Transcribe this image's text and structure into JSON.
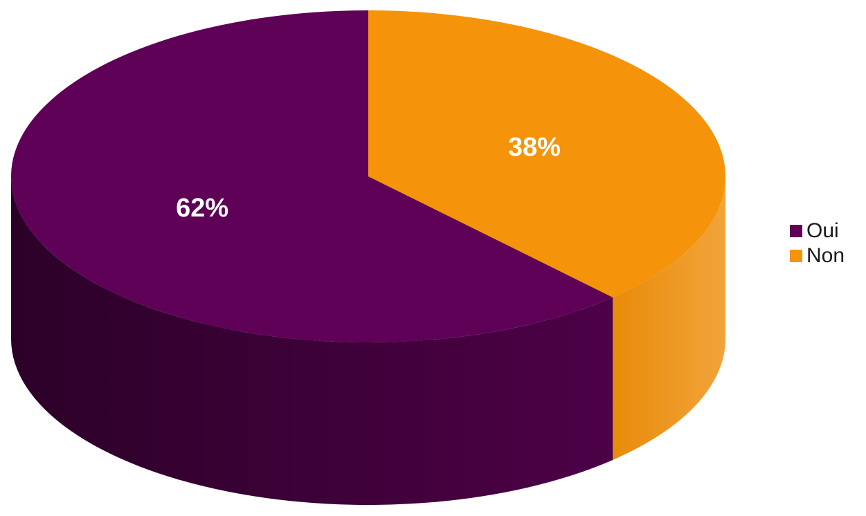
{
  "chart_data": {
    "type": "pie",
    "style": "3d",
    "categories": [
      "Oui",
      "Non"
    ],
    "values": [
      62,
      38
    ],
    "labels": [
      "62%",
      "38%"
    ],
    "colors": [
      "#5e0157",
      "#f5940a"
    ],
    "side_colors": [
      "#3c0136",
      "#e0850a"
    ],
    "legend_position": "right"
  }
}
